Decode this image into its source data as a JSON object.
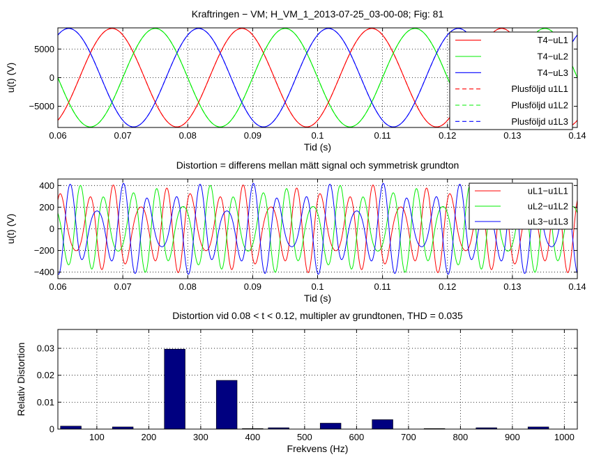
{
  "chart_data": [
    {
      "type": "line",
      "title": "Kraftringen − VM; H_VM_1_2013-07-25_03-00-08; Fig: 81",
      "xlabel": "Tid (s)",
      "ylabel": "u(t) (V)",
      "xlim": [
        0.06,
        0.14
      ],
      "ylim": [
        -8700,
        8700
      ],
      "xticks": [
        0.06,
        0.07,
        0.08,
        0.09,
        0.1,
        0.11,
        0.12,
        0.13,
        0.14
      ],
      "xtick_labels": [
        "0.06",
        "0.07",
        "0.08",
        "0.09",
        "0.1",
        "0.11",
        "0.12",
        "0.13",
        "0.14"
      ],
      "yticks": [
        -5000,
        0,
        5000
      ],
      "ytick_labels": [
        "−5000",
        "0",
        "5000"
      ],
      "grid": true,
      "legend_position": "top-right",
      "frequency_hz": 50,
      "amplitude": 8600,
      "series": [
        {
          "name": "T4−uL1",
          "color": "#ff0000",
          "style": "solid",
          "phase_deg": -60
        },
        {
          "name": "T4−uL2",
          "color": "#00ee00",
          "style": "solid",
          "phase_deg": 180
        },
        {
          "name": "T4−uL3",
          "color": "#0000ff",
          "style": "solid",
          "phase_deg": 60
        },
        {
          "name": "Plusföljd u1L1",
          "color": "#ff0000",
          "style": "dashed",
          "phase_deg": -60
        },
        {
          "name": "Plusföljd u1L2",
          "color": "#00ee00",
          "style": "dashed",
          "phase_deg": 180
        },
        {
          "name": "Plusföljd u1L3",
          "color": "#0000ff",
          "style": "dashed",
          "phase_deg": 60
        }
      ]
    },
    {
      "type": "line",
      "title": "Distortion = differens mellan mätt signal och symmetrisk grundton",
      "xlabel": "Tid (s)",
      "ylabel": "u(t) (V)",
      "xlim": [
        0.06,
        0.14
      ],
      "ylim": [
        -460,
        460
      ],
      "xticks": [
        0.06,
        0.07,
        0.08,
        0.09,
        0.1,
        0.11,
        0.12,
        0.13,
        0.14
      ],
      "xtick_labels": [
        "0.06",
        "0.07",
        "0.08",
        "0.09",
        "0.1",
        "0.11",
        "0.12",
        "0.13",
        "0.14"
      ],
      "yticks": [
        -400,
        -200,
        0,
        200,
        400
      ],
      "ytick_labels": [
        "−400",
        "−200",
        "0",
        "200",
        "400"
      ],
      "grid": true,
      "legend_position": "top-right",
      "series": [
        {
          "name": "uL1−u1L1",
          "color": "#ff0000",
          "harmonics": [
            [
              5,
              300,
              0.5
            ],
            [
              7,
              110,
              2.0
            ],
            [
              3,
              25,
              1.0
            ]
          ]
        },
        {
          "name": "uL2−u1L2",
          "color": "#00ee00",
          "harmonics": [
            [
              5,
              300,
              2.6
            ],
            [
              7,
              110,
              -0.1
            ],
            [
              3,
              25,
              3.1
            ]
          ]
        },
        {
          "name": "uL3−u1L3",
          "color": "#0000ff",
          "harmonics": [
            [
              5,
              300,
              4.7
            ],
            [
              7,
              110,
              4.1
            ],
            [
              3,
              25,
              5.2
            ]
          ]
        }
      ]
    },
    {
      "type": "bar",
      "title": "Distortion vid 0.08 < t < 0.12, multipler av grundtonen, THD = 0.035",
      "xlabel": "Frekvens (Hz)",
      "ylabel": "Relativ Distortion",
      "xlim": [
        25,
        1025
      ],
      "ylim": [
        0,
        0.037
      ],
      "xticks": [
        100,
        200,
        300,
        400,
        500,
        600,
        700,
        800,
        900,
        1000
      ],
      "xtick_labels": [
        "100",
        "200",
        "300",
        "400",
        "500",
        "600",
        "700",
        "800",
        "900",
        "1000"
      ],
      "yticks": [
        0,
        0.01,
        0.02,
        0.03
      ],
      "ytick_labels": [
        "0",
        "0.01",
        "0.02",
        "0.03"
      ],
      "grid": true,
      "bar_color": "#000080",
      "x": [
        50,
        150,
        250,
        350,
        400,
        450,
        550,
        650,
        750,
        850,
        950
      ],
      "values": [
        0.0011,
        0.0008,
        0.0297,
        0.0181,
        0.0002,
        0.0005,
        0.0022,
        0.0035,
        0.0002,
        0.0005,
        0.0008
      ]
    }
  ]
}
